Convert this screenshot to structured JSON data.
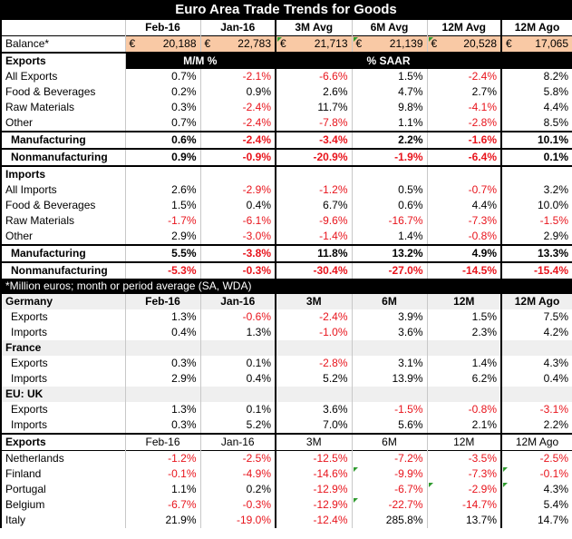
{
  "title": "Euro Area Trade Trends for Goods",
  "header": {
    "c1": "Feb-16",
    "c2": "Jan-16",
    "c3": "3M Avg",
    "c4": "6M Avg",
    "c5": "12M Avg",
    "c6": "12M Ago"
  },
  "balance": {
    "label": "Balance*",
    "currency": "€",
    "v1": "20,188",
    "v2": "22,783",
    "v3": "21,713",
    "v4": "21,139",
    "v5": "20,528",
    "v6": "17,065"
  },
  "exports_header": {
    "label": "Exports",
    "mm": "M/M %",
    "saar": "% SAAR"
  },
  "exports": [
    {
      "label": "All Exports",
      "v": [
        "0.7%",
        "-2.1%",
        "-6.6%",
        "1.5%",
        "-2.4%",
        "8.2%"
      ]
    },
    {
      "label": "Food & Beverages",
      "v": [
        "0.2%",
        "0.9%",
        "2.6%",
        "4.7%",
        "2.7%",
        "5.8%"
      ]
    },
    {
      "label": "Raw Materials",
      "v": [
        "0.3%",
        "-2.4%",
        "11.7%",
        "9.8%",
        "-4.1%",
        "4.4%"
      ]
    },
    {
      "label": "Other",
      "v": [
        "0.7%",
        "-2.4%",
        "-7.8%",
        "1.1%",
        "-2.8%",
        "8.5%"
      ]
    }
  ],
  "exports_mfg": [
    {
      "label": "Manufacturing",
      "v": [
        "0.6%",
        "-2.4%",
        "-3.4%",
        "2.2%",
        "-1.6%",
        "10.1%"
      ]
    },
    {
      "label": "Nonmanufacturing",
      "v": [
        "0.9%",
        "-0.9%",
        "-20.9%",
        "-1.9%",
        "-6.4%",
        "0.1%"
      ]
    }
  ],
  "imports_header": {
    "label": "Imports"
  },
  "imports": [
    {
      "label": "All Imports",
      "v": [
        "2.6%",
        "-2.9%",
        "-1.2%",
        "0.5%",
        "-0.7%",
        "3.2%"
      ]
    },
    {
      "label": "Food & Beverages",
      "v": [
        "1.5%",
        "0.4%",
        "6.7%",
        "0.6%",
        "4.4%",
        "10.0%"
      ]
    },
    {
      "label": "Raw Materials",
      "v": [
        "-1.7%",
        "-6.1%",
        "-9.6%",
        "-16.7%",
        "-7.3%",
        "-1.5%"
      ]
    },
    {
      "label": "Other",
      "v": [
        "2.9%",
        "-3.0%",
        "-1.4%",
        "1.4%",
        "-0.8%",
        "2.9%"
      ]
    }
  ],
  "imports_mfg": [
    {
      "label": "Manufacturing",
      "v": [
        "5.5%",
        "-3.8%",
        "11.8%",
        "13.2%",
        "4.9%",
        "13.3%"
      ]
    },
    {
      "label": "Nonmanufacturing",
      "v": [
        "-5.3%",
        "-0.3%",
        "-30.4%",
        "-27.0%",
        "-14.5%",
        "-15.4%"
      ]
    }
  ],
  "note": "*Million euros; month or period average (SA, WDA)",
  "country_header": {
    "label": "Germany",
    "c1": "Feb-16",
    "c2": "Jan-16",
    "c3": "3M",
    "c4": "6M",
    "c5": "12M",
    "c6": "12M Ago"
  },
  "germany": [
    {
      "label": "Exports",
      "v": [
        "1.3%",
        "-0.6%",
        "-2.4%",
        "3.9%",
        "1.5%",
        "7.5%"
      ]
    },
    {
      "label": "Imports",
      "v": [
        "0.4%",
        "1.3%",
        "-1.0%",
        "3.6%",
        "2.3%",
        "4.2%"
      ]
    }
  ],
  "france_label": "France",
  "france": [
    {
      "label": "Exports",
      "v": [
        "0.3%",
        "0.1%",
        "-2.8%",
        "3.1%",
        "1.4%",
        "4.3%"
      ]
    },
    {
      "label": "Imports",
      "v": [
        "2.9%",
        "0.4%",
        "5.2%",
        "13.9%",
        "6.2%",
        "0.4%"
      ]
    }
  ],
  "uk_label": "EU: UK",
  "uk": [
    {
      "label": "Exports",
      "v": [
        "1.3%",
        "0.1%",
        "3.6%",
        "-1.5%",
        "-0.8%",
        "-3.1%"
      ]
    },
    {
      "label": "Imports",
      "v": [
        "0.3%",
        "5.2%",
        "7.0%",
        "5.6%",
        "2.1%",
        "2.2%"
      ]
    }
  ],
  "exports2_header": {
    "label": "Exports",
    "c1": "Feb-16",
    "c2": "Jan-16",
    "c3": "3M",
    "c4": "6M",
    "c5": "12M",
    "c6": "12M Ago"
  },
  "countries": [
    {
      "label": "Netherlands",
      "v": [
        "-1.2%",
        "-2.5%",
        "-12.5%",
        "-7.2%",
        "-3.5%",
        "-2.5%"
      ]
    },
    {
      "label": "Finland",
      "v": [
        "-0.1%",
        "-4.9%",
        "-14.6%",
        "-9.9%",
        "-7.3%",
        "-0.1%"
      ]
    },
    {
      "label": "Portugal",
      "v": [
        "1.1%",
        "0.2%",
        "-12.9%",
        "-6.7%",
        "-2.9%",
        "4.3%"
      ]
    },
    {
      "label": "Belgium",
      "v": [
        "-6.7%",
        "-0.3%",
        "-12.9%",
        "-22.7%",
        "-14.7%",
        "5.4%"
      ]
    },
    {
      "label": "Italy",
      "v": [
        "21.9%",
        "-19.0%",
        "-12.4%",
        "285.8%",
        "13.7%",
        "14.7%"
      ]
    }
  ],
  "colors": {
    "negative": "#e8141c",
    "balance_fill": "#f9c9a5",
    "header_fill": "#000000",
    "marker": "#2f9b2f"
  }
}
